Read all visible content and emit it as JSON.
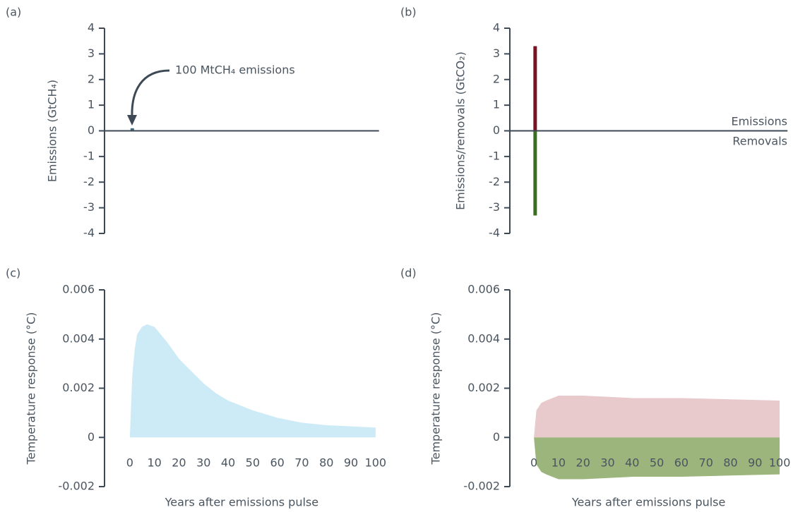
{
  "chart_data": [
    {
      "type": "bar",
      "title": "(a)",
      "ylabel": "Emissions (GtCH₄)",
      "annotation": "100 MtCH₄ emissions",
      "x": [
        1
      ],
      "series": [
        {
          "color": "#3e6a8a",
          "values": [
            0.1
          ]
        }
      ],
      "xlim": [
        -10.3,
        101.4
      ],
      "ylim": [
        -4,
        4
      ],
      "yticks": [
        -4,
        -3,
        -2,
        -1,
        0,
        1,
        2,
        3,
        4
      ]
    },
    {
      "type": "bar",
      "title": "(b)",
      "ylabel": "Emissions/removals (GtCO₂)",
      "annotations": [
        "Emissions",
        "Removals"
      ],
      "x": [
        0.5
      ],
      "series": [
        {
          "color": "#7b1123",
          "values": [
            3.3
          ]
        },
        {
          "color": "#3b6e1e",
          "values": [
            -3.3
          ]
        }
      ],
      "xlim": [
        -9.8,
        103.2
      ],
      "ylim": [
        -4,
        4
      ],
      "yticks": [
        -4,
        -3,
        -2,
        -1,
        0,
        1,
        2,
        3,
        4
      ]
    },
    {
      "type": "area",
      "title": "(c)",
      "ylabel": "Temperature response (°C)",
      "xlabel": "Years after emissions pulse",
      "x": [
        0,
        1,
        2,
        3,
        5,
        7,
        10,
        15,
        20,
        25,
        30,
        35,
        40,
        45,
        50,
        60,
        70,
        80,
        90,
        100
      ],
      "series": [
        {
          "color": "#cdebf7",
          "values": [
            0,
            0.0025,
            0.0036,
            0.0042,
            0.0045,
            0.0046,
            0.0045,
            0.0039,
            0.0032,
            0.0027,
            0.0022,
            0.0018,
            0.0015,
            0.0013,
            0.0011,
            0.0008,
            0.0006,
            0.0005,
            0.00045,
            0.0004
          ]
        }
      ],
      "xlim": [
        -10.3,
        101.4
      ],
      "xticks": [
        0,
        10,
        20,
        30,
        40,
        50,
        60,
        70,
        80,
        90,
        100
      ],
      "ylim": [
        -0.002,
        0.006
      ],
      "yticks": [
        -0.002,
        0,
        0.002,
        0.004,
        0.006
      ]
    },
    {
      "type": "area",
      "title": "(d)",
      "ylabel": "Temperature response (°C)",
      "xlabel": "Years after emissions pulse",
      "x": [
        0,
        1,
        3,
        5,
        10,
        20,
        40,
        60,
        80,
        100
      ],
      "series": [
        {
          "color": "#e8c9cc",
          "values": [
            0,
            0.0011,
            0.0014,
            0.0015,
            0.0017,
            0.0017,
            0.0016,
            0.0016,
            0.00155,
            0.0015
          ]
        },
        {
          "color": "#9cb57c",
          "values": [
            0,
            -0.0011,
            -0.0014,
            -0.0015,
            -0.0017,
            -0.0017,
            -0.0016,
            -0.0016,
            -0.00155,
            -0.0015
          ]
        }
      ],
      "xlim": [
        -9.8,
        103.2
      ],
      "xticks": [
        0,
        10,
        20,
        30,
        40,
        50,
        60,
        70,
        80,
        90,
        100
      ],
      "ylim": [
        -0.002,
        0.006
      ],
      "yticks": [
        -0.002,
        0,
        0.002,
        0.004,
        0.006
      ]
    }
  ]
}
